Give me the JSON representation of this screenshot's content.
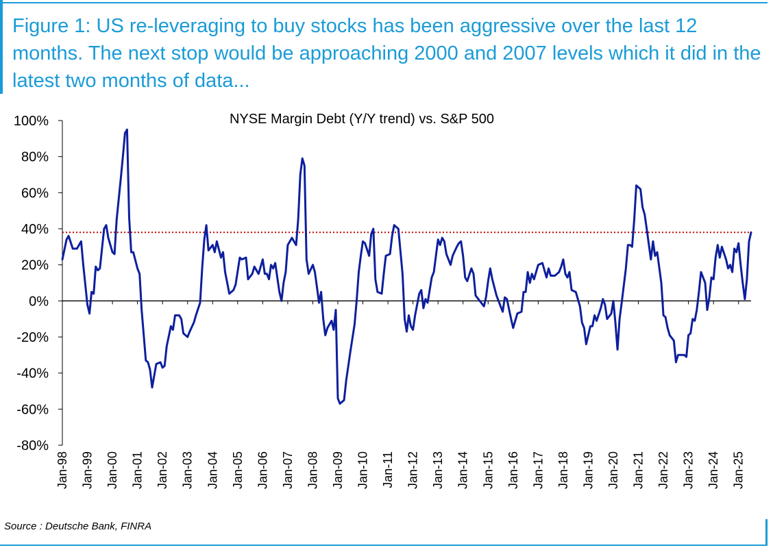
{
  "figure": {
    "title": "Figure 1: US re-leveraging to buy stocks has been aggressive over the last 12 months. The next stop would be approaching 2000 and 2007 levels which it did in the latest two months of data...",
    "source": "Source : Deutsche Bank, FINRA",
    "accent_color": "#1a9bd7"
  },
  "chart_data": {
    "type": "line",
    "title": "NYSE Margin Debt (Y/Y trend) vs. S&P 500",
    "ylim": [
      -80,
      100
    ],
    "yticks": [
      -80,
      -60,
      -40,
      -20,
      0,
      20,
      40,
      60,
      80,
      100
    ],
    "ytick_labels": [
      "-80%",
      "-60%",
      "-40%",
      "-20%",
      "0%",
      "20%",
      "40%",
      "60%",
      "80%",
      "100%"
    ],
    "xlim": [
      "1998-01",
      "2025-07"
    ],
    "xtick_labels": [
      "Jan-98",
      "Jan-99",
      "Jan-00",
      "Jan-01",
      "Jan-02",
      "Jan-03",
      "Jan-04",
      "Jan-05",
      "Jan-06",
      "Jan-07",
      "Jan-08",
      "Jan-09",
      "Jan-10",
      "Jan-11",
      "Jan-12",
      "Jan-13",
      "Jan-14",
      "Jan-15",
      "Jan-16",
      "Jan-17",
      "Jan-18",
      "Jan-19",
      "Jan-20",
      "Jan-21",
      "Jan-22",
      "Jan-23",
      "Jan-24",
      "Jan-25"
    ],
    "grid": false,
    "legend": "none",
    "series": [
      {
        "color": "#0d1f9c",
        "points": [
          [
            "1998-01",
            23
          ],
          [
            "1998-03",
            34
          ],
          [
            "1998-04",
            36
          ],
          [
            "1998-06",
            29
          ],
          [
            "1998-08",
            29
          ],
          [
            "1998-10",
            33
          ],
          [
            "1998-11",
            20
          ],
          [
            "1999-01",
            -2
          ],
          [
            "1999-02",
            -7
          ],
          [
            "1999-03",
            5
          ],
          [
            "1999-04",
            4
          ],
          [
            "1999-05",
            19
          ],
          [
            "1999-06",
            17
          ],
          [
            "1999-07",
            18
          ],
          [
            "1999-09",
            40
          ],
          [
            "1999-10",
            42
          ],
          [
            "1999-11",
            35
          ],
          [
            "2000-01",
            27
          ],
          [
            "2000-02",
            26
          ],
          [
            "2000-03",
            45
          ],
          [
            "2000-05",
            68
          ],
          [
            "2000-06",
            80
          ],
          [
            "2000-07",
            93
          ],
          [
            "2000-08",
            95
          ],
          [
            "2000-09",
            46
          ],
          [
            "2000-10",
            27
          ],
          [
            "2000-11",
            27
          ],
          [
            "2001-01",
            18
          ],
          [
            "2001-02",
            15
          ],
          [
            "2001-03",
            -5
          ],
          [
            "2001-05",
            -33
          ],
          [
            "2001-06",
            -34
          ],
          [
            "2001-07",
            -38
          ],
          [
            "2001-08",
            -48
          ],
          [
            "2001-10",
            -35
          ],
          [
            "2001-12",
            -34
          ],
          [
            "2002-01",
            -37
          ],
          [
            "2002-02",
            -36
          ],
          [
            "2002-03",
            -25
          ],
          [
            "2002-05",
            -14
          ],
          [
            "2002-06",
            -16
          ],
          [
            "2002-07",
            -8
          ],
          [
            "2002-09",
            -8
          ],
          [
            "2002-10",
            -10
          ],
          [
            "2002-11",
            -18
          ],
          [
            "2003-01",
            -20
          ],
          [
            "2003-02",
            -17
          ],
          [
            "2003-04",
            -12
          ],
          [
            "2003-05",
            -8
          ],
          [
            "2003-07",
            -1
          ],
          [
            "2003-08",
            18
          ],
          [
            "2003-09",
            34
          ],
          [
            "2003-10",
            42
          ],
          [
            "2003-11",
            28
          ],
          [
            "2004-01",
            31
          ],
          [
            "2004-02",
            27
          ],
          [
            "2004-03",
            33
          ],
          [
            "2004-05",
            24
          ],
          [
            "2004-06",
            27
          ],
          [
            "2004-07",
            16
          ],
          [
            "2004-08",
            10
          ],
          [
            "2004-09",
            4
          ],
          [
            "2004-11",
            6
          ],
          [
            "2004-12",
            9
          ],
          [
            "2005-02",
            24
          ],
          [
            "2005-03",
            23
          ],
          [
            "2005-05",
            24
          ],
          [
            "2005-06",
            12
          ],
          [
            "2005-08",
            15
          ],
          [
            "2005-09",
            19
          ],
          [
            "2005-10",
            17
          ],
          [
            "2005-11",
            15
          ],
          [
            "2006-01",
            23
          ],
          [
            "2006-02",
            15
          ],
          [
            "2006-03",
            15
          ],
          [
            "2006-04",
            12
          ],
          [
            "2006-05",
            20
          ],
          [
            "2006-06",
            18
          ],
          [
            "2006-07",
            21
          ],
          [
            "2006-09",
            5
          ],
          [
            "2006-10",
            0
          ],
          [
            "2006-11",
            10
          ],
          [
            "2006-12",
            16
          ],
          [
            "2007-01",
            31
          ],
          [
            "2007-03",
            35
          ],
          [
            "2007-05",
            31
          ],
          [
            "2007-06",
            45
          ],
          [
            "2007-07",
            70
          ],
          [
            "2007-08",
            79
          ],
          [
            "2007-09",
            75
          ],
          [
            "2007-10",
            23
          ],
          [
            "2007-11",
            15
          ],
          [
            "2008-01",
            20
          ],
          [
            "2008-02",
            16
          ],
          [
            "2008-04",
            -1
          ],
          [
            "2008-05",
            5
          ],
          [
            "2008-06",
            -10
          ],
          [
            "2008-07",
            -19
          ],
          [
            "2008-08",
            -15
          ],
          [
            "2008-10",
            -11
          ],
          [
            "2008-11",
            -16
          ],
          [
            "2008-12",
            -5
          ],
          [
            "2009-01",
            -54
          ],
          [
            "2009-02",
            -57
          ],
          [
            "2009-04",
            -55
          ],
          [
            "2009-05",
            -44
          ],
          [
            "2009-07",
            -28
          ],
          [
            "2009-09",
            -13
          ],
          [
            "2009-10",
            0
          ],
          [
            "2009-11",
            16
          ],
          [
            "2009-12",
            25
          ],
          [
            "2010-01",
            33
          ],
          [
            "2010-02",
            32
          ],
          [
            "2010-04",
            25
          ],
          [
            "2010-05",
            37
          ],
          [
            "2010-06",
            40
          ],
          [
            "2010-07",
            12
          ],
          [
            "2010-08",
            5
          ],
          [
            "2010-10",
            4
          ],
          [
            "2010-11",
            15
          ],
          [
            "2010-12",
            25
          ],
          [
            "2011-02",
            26
          ],
          [
            "2011-03",
            36
          ],
          [
            "2011-04",
            42
          ],
          [
            "2011-06",
            40
          ],
          [
            "2011-08",
            15
          ],
          [
            "2011-09",
            -10
          ],
          [
            "2011-10",
            -17
          ],
          [
            "2011-11",
            -8
          ],
          [
            "2011-12",
            -14
          ],
          [
            "2012-01",
            -16
          ],
          [
            "2012-02",
            -8
          ],
          [
            "2012-04",
            4
          ],
          [
            "2012-05",
            6
          ],
          [
            "2012-06",
            -4
          ],
          [
            "2012-07",
            1
          ],
          [
            "2012-08",
            -1
          ],
          [
            "2012-10",
            13
          ],
          [
            "2012-11",
            16
          ],
          [
            "2013-01",
            34
          ],
          [
            "2013-02",
            31
          ],
          [
            "2013-03",
            35
          ],
          [
            "2013-04",
            33
          ],
          [
            "2013-05",
            26
          ],
          [
            "2013-07",
            20
          ],
          [
            "2013-08",
            25
          ],
          [
            "2013-10",
            30
          ],
          [
            "2013-11",
            32
          ],
          [
            "2013-12",
            33
          ],
          [
            "2014-01",
            25
          ],
          [
            "2014-02",
            13
          ],
          [
            "2014-03",
            11
          ],
          [
            "2014-05",
            18
          ],
          [
            "2014-06",
            15
          ],
          [
            "2014-07",
            3
          ],
          [
            "2014-09",
            0
          ],
          [
            "2014-11",
            -3
          ],
          [
            "2014-12",
            2
          ],
          [
            "2015-01",
            11
          ],
          [
            "2015-02",
            18
          ],
          [
            "2015-03",
            12
          ],
          [
            "2015-05",
            3
          ],
          [
            "2015-07",
            -3
          ],
          [
            "2015-08",
            -6
          ],
          [
            "2015-09",
            2
          ],
          [
            "2015-10",
            1
          ],
          [
            "2015-12",
            -10
          ],
          [
            "2016-01",
            -15
          ],
          [
            "2016-03",
            -7
          ],
          [
            "2016-05",
            -6
          ],
          [
            "2016-06",
            5
          ],
          [
            "2016-07",
            5
          ],
          [
            "2016-08",
            16
          ],
          [
            "2016-09",
            10
          ],
          [
            "2016-10",
            15
          ],
          [
            "2016-11",
            12
          ],
          [
            "2016-12",
            16
          ],
          [
            "2017-01",
            20
          ],
          [
            "2017-03",
            21
          ],
          [
            "2017-05",
            13
          ],
          [
            "2017-06",
            18
          ],
          [
            "2017-07",
            14
          ],
          [
            "2017-09",
            14
          ],
          [
            "2017-11",
            16
          ],
          [
            "2017-12",
            19
          ],
          [
            "2018-01",
            23
          ],
          [
            "2018-02",
            15
          ],
          [
            "2018-03",
            13
          ],
          [
            "2018-04",
            16
          ],
          [
            "2018-05",
            6
          ],
          [
            "2018-07",
            5
          ],
          [
            "2018-09",
            -3
          ],
          [
            "2018-10",
            -12
          ],
          [
            "2018-11",
            -15
          ],
          [
            "2018-12",
            -24
          ],
          [
            "2019-02",
            -14
          ],
          [
            "2019-03",
            -14
          ],
          [
            "2019-04",
            -8
          ],
          [
            "2019-05",
            -11
          ],
          [
            "2019-07",
            -4
          ],
          [
            "2019-08",
            1
          ],
          [
            "2019-09",
            -2
          ],
          [
            "2019-10",
            -10
          ],
          [
            "2019-12",
            -7
          ],
          [
            "2020-01",
            0
          ],
          [
            "2020-02",
            -12
          ],
          [
            "2020-03",
            -27
          ],
          [
            "2020-04",
            -10
          ],
          [
            "2020-05",
            -1
          ],
          [
            "2020-07",
            18
          ],
          [
            "2020-08",
            31
          ],
          [
            "2020-09",
            31
          ],
          [
            "2020-10",
            30
          ],
          [
            "2020-11",
            45
          ],
          [
            "2020-12",
            64
          ],
          [
            "2021-02",
            62
          ],
          [
            "2021-03",
            52
          ],
          [
            "2021-04",
            48
          ],
          [
            "2021-05",
            40
          ],
          [
            "2021-07",
            23
          ],
          [
            "2021-08",
            33
          ],
          [
            "2021-09",
            25
          ],
          [
            "2021-10",
            27
          ],
          [
            "2021-12",
            10
          ],
          [
            "2022-01",
            -8
          ],
          [
            "2022-02",
            -9
          ],
          [
            "2022-03",
            -15
          ],
          [
            "2022-04",
            -19
          ],
          [
            "2022-06",
            -22
          ],
          [
            "2022-07",
            -34
          ],
          [
            "2022-08",
            -30
          ],
          [
            "2022-10",
            -30
          ],
          [
            "2022-11",
            -30
          ],
          [
            "2022-12",
            -31
          ],
          [
            "2023-01",
            -19
          ],
          [
            "2023-02",
            -18
          ],
          [
            "2023-03",
            -10
          ],
          [
            "2023-04",
            -11
          ],
          [
            "2023-05",
            -5
          ],
          [
            "2023-06",
            5
          ],
          [
            "2023-07",
            16
          ],
          [
            "2023-08",
            13
          ],
          [
            "2023-09",
            10
          ],
          [
            "2023-10",
            -5
          ],
          [
            "2023-11",
            2
          ],
          [
            "2023-12",
            13
          ],
          [
            "2024-01",
            12
          ],
          [
            "2024-02",
            24
          ],
          [
            "2024-03",
            31
          ],
          [
            "2024-04",
            24
          ],
          [
            "2024-05",
            30
          ],
          [
            "2024-07",
            23
          ],
          [
            "2024-08",
            18
          ],
          [
            "2024-09",
            20
          ],
          [
            "2024-10",
            16
          ],
          [
            "2024-11",
            29
          ],
          [
            "2024-12",
            27
          ],
          [
            "2025-01",
            32
          ],
          [
            "2025-02",
            20
          ],
          [
            "2025-03",
            10
          ],
          [
            "2025-04",
            1
          ],
          [
            "2025-05",
            12
          ],
          [
            "2025-06",
            33
          ],
          [
            "2025-07",
            38
          ]
        ]
      }
    ],
    "reference_line": {
      "y": 38,
      "color": "#c00000",
      "style": "dotted"
    }
  }
}
